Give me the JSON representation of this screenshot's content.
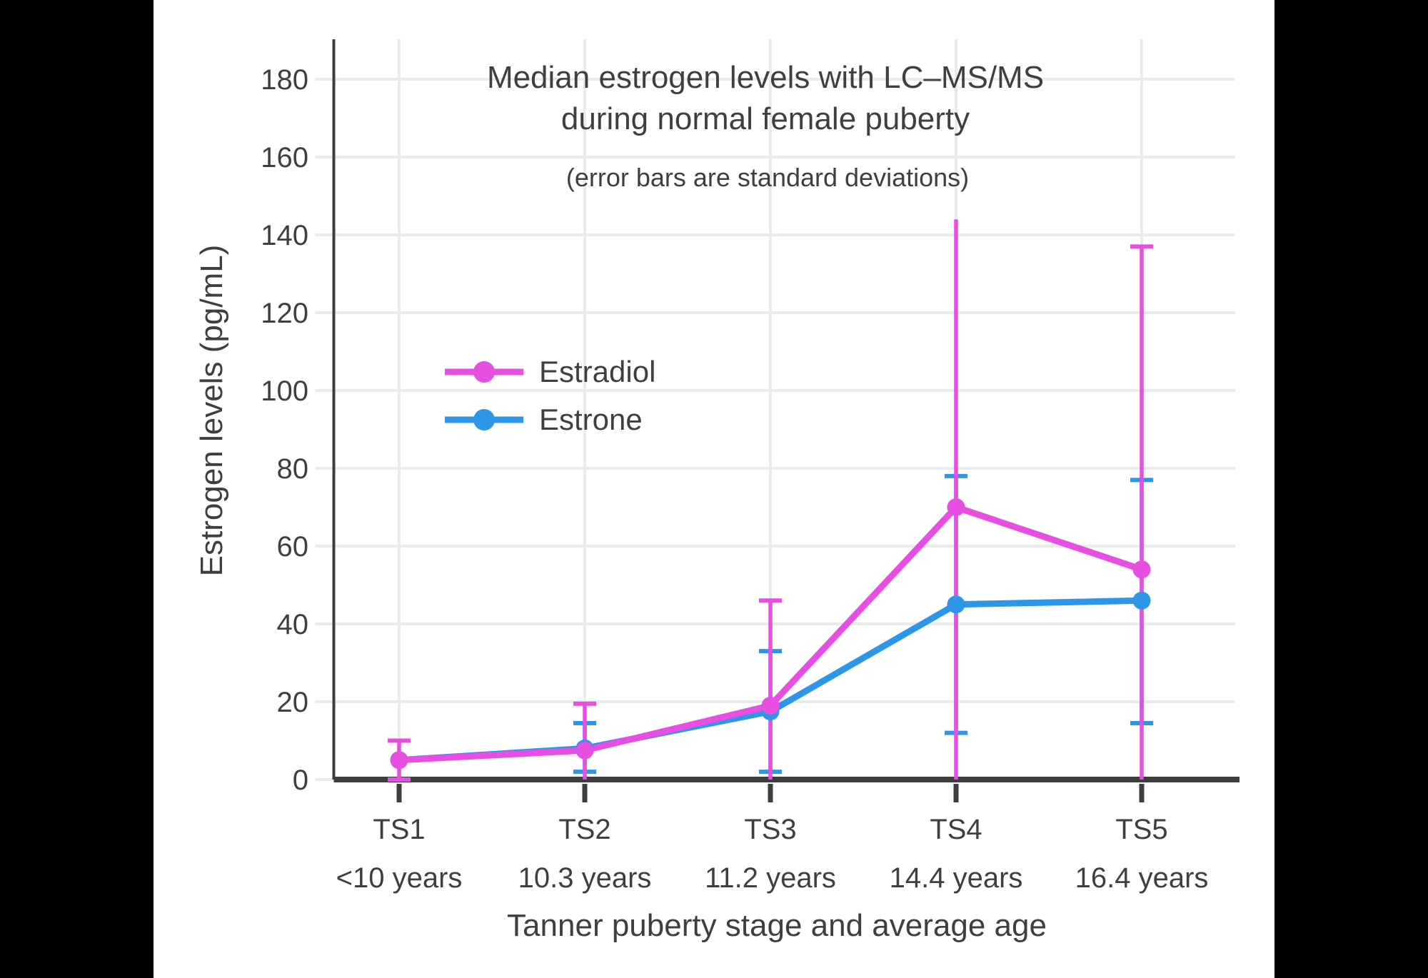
{
  "title": {
    "line1": "Median estrogen levels with LC–MS/MS",
    "line2": "during normal female puberty"
  },
  "subtitle": "(error bars are standard deviations)",
  "legend": [
    {
      "name": "Estradiol",
      "color": "#e64fe2"
    },
    {
      "name": "Estrone",
      "color": "#2e96e8"
    }
  ],
  "axes": {
    "y_title": "Estrogen levels (pg/mL)",
    "x_title": "Tanner puberty stage and average age",
    "y_ticks": [
      0,
      20,
      40,
      60,
      80,
      100,
      120,
      140,
      160,
      180
    ]
  },
  "colors": {
    "grid": "#ebebeb",
    "axis_line": "#3d3d3d",
    "text": "#3f3f3f",
    "background": "#ffffff"
  },
  "chart_data": {
    "type": "line",
    "title": "Median estrogen levels with LC–MS/MS during normal female puberty",
    "subtitle": "(error bars are standard deviations)",
    "xlabel": "Tanner puberty stage and average age",
    "ylabel": "Estrogen levels (pg/mL)",
    "ylim": [
      0,
      190
    ],
    "grid": true,
    "legend_position": "inside-left-middle",
    "categories": [
      "TS1",
      "TS2",
      "TS3",
      "TS4",
      "TS5"
    ],
    "category_ages": [
      "<10 years",
      "10.3 years",
      "11.2 years",
      "14.4 years",
      "16.4 years"
    ],
    "series": [
      {
        "name": "Estradiol",
        "color": "#e64fe2",
        "values": [
          5,
          7.5,
          19,
          70,
          54
        ],
        "error_high": [
          10,
          19.5,
          46,
          144,
          137
        ],
        "error_low": [
          0,
          0,
          0,
          0,
          0
        ],
        "cap_high": [
          true,
          true,
          true,
          false,
          true
        ],
        "cap_low": [
          true,
          false,
          false,
          false,
          false
        ]
      },
      {
        "name": "Estrone",
        "color": "#2e96e8",
        "values": [
          5,
          8,
          17.5,
          45,
          46
        ],
        "error_high": [
          null,
          14.5,
          33,
          78,
          77
        ],
        "error_low": [
          null,
          2,
          2,
          12,
          14.5
        ],
        "cap_high": [
          false,
          true,
          true,
          true,
          true
        ],
        "cap_low": [
          false,
          true,
          true,
          true,
          true
        ]
      }
    ]
  }
}
